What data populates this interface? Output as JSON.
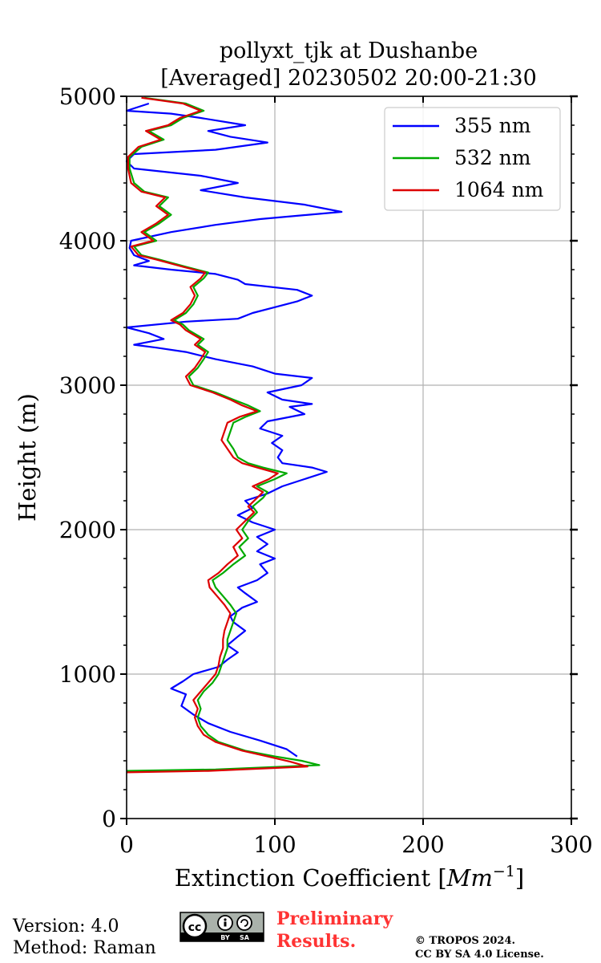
{
  "chart_data": {
    "type": "line",
    "title_line1": "pollyxt_tjk at Dushanbe",
    "title_line2": "[Averaged] 20230502 20:00-21:30",
    "xlabel": "Extinction Coefficient [Mm⁻¹]",
    "xlabel_main": "Extinction Coefficient [",
    "xlabel_unit": "Mm",
    "xlabel_exp": "−1",
    "xlabel_close": "]",
    "ylabel": "Height (m)",
    "xlim": [
      0,
      300
    ],
    "ylim": [
      0,
      5000
    ],
    "xticks": [
      0,
      100,
      200,
      300
    ],
    "yticks": [
      0,
      1000,
      2000,
      3000,
      4000,
      5000
    ],
    "xtick_labels": [
      "0",
      "100",
      "200",
      "300"
    ],
    "ytick_labels": [
      "0",
      "1000",
      "2000",
      "3000",
      "4000",
      "5000"
    ],
    "grid": true,
    "legend_position": "top-right",
    "series": [
      {
        "name": "355 nm",
        "color": "#0000ff",
        "points": [
          [
            115,
            430
          ],
          [
            108,
            480
          ],
          [
            90,
            540
          ],
          [
            70,
            600
          ],
          [
            55,
            660
          ],
          [
            45,
            720
          ],
          [
            37,
            780
          ],
          [
            40,
            860
          ],
          [
            30,
            900
          ],
          [
            38,
            950
          ],
          [
            45,
            1000
          ],
          [
            62,
            1050
          ],
          [
            68,
            1100
          ],
          [
            75,
            1150
          ],
          [
            68,
            1200
          ],
          [
            75,
            1260
          ],
          [
            80,
            1300
          ],
          [
            72,
            1360
          ],
          [
            70,
            1400
          ],
          [
            78,
            1460
          ],
          [
            88,
            1500
          ],
          [
            80,
            1560
          ],
          [
            75,
            1600
          ],
          [
            88,
            1650
          ],
          [
            95,
            1700
          ],
          [
            90,
            1760
          ],
          [
            100,
            1800
          ],
          [
            88,
            1850
          ],
          [
            95,
            1900
          ],
          [
            88,
            1950
          ],
          [
            100,
            2000
          ],
          [
            85,
            2050
          ],
          [
            75,
            2100
          ],
          [
            85,
            2150
          ],
          [
            80,
            2200
          ],
          [
            95,
            2250
          ],
          [
            105,
            2300
          ],
          [
            120,
            2350
          ],
          [
            135,
            2400
          ],
          [
            125,
            2430
          ],
          [
            105,
            2460
          ],
          [
            102,
            2500
          ],
          [
            105,
            2550
          ],
          [
            98,
            2600
          ],
          [
            105,
            2650
          ],
          [
            90,
            2700
          ],
          [
            95,
            2750
          ],
          [
            120,
            2800
          ],
          [
            110,
            2850
          ],
          [
            125,
            2870
          ],
          [
            105,
            2900
          ],
          [
            95,
            2950
          ],
          [
            118,
            3000
          ],
          [
            125,
            3050
          ],
          [
            100,
            3080
          ],
          [
            85,
            3130
          ],
          [
            60,
            3180
          ],
          [
            40,
            3230
          ],
          [
            20,
            3260
          ],
          [
            5,
            3280
          ],
          [
            25,
            3320
          ],
          [
            15,
            3360
          ],
          [
            0,
            3400
          ],
          [
            40,
            3440
          ],
          [
            75,
            3460
          ],
          [
            85,
            3500
          ],
          [
            100,
            3540
          ],
          [
            115,
            3580
          ],
          [
            125,
            3620
          ],
          [
            115,
            3660
          ],
          [
            80,
            3700
          ],
          [
            75,
            3730
          ],
          [
            60,
            3770
          ],
          [
            30,
            3800
          ],
          [
            5,
            3830
          ],
          [
            15,
            3860
          ],
          [
            5,
            3900
          ],
          [
            2,
            3950
          ],
          [
            3,
            4000
          ],
          [
            30,
            4060
          ],
          [
            60,
            4110
          ],
          [
            90,
            4150
          ],
          [
            145,
            4200
          ],
          [
            120,
            4250
          ],
          [
            80,
            4300
          ],
          [
            50,
            4350
          ],
          [
            75,
            4400
          ],
          [
            50,
            4450
          ],
          [
            5,
            4500
          ],
          [
            0,
            4550
          ],
          [
            5,
            4600
          ],
          [
            60,
            4630
          ],
          [
            95,
            4680
          ],
          [
            70,
            4720
          ],
          [
            55,
            4760
          ],
          [
            80,
            4800
          ],
          [
            50,
            4850
          ],
          [
            30,
            4880
          ],
          [
            0,
            4900
          ],
          [
            15,
            4950
          ]
        ]
      },
      {
        "name": "532 nm",
        "color": "#00aa00",
        "points": [
          [
            0,
            330
          ],
          [
            60,
            340
          ],
          [
            130,
            370
          ],
          [
            118,
            400
          ],
          [
            100,
            430
          ],
          [
            80,
            470
          ],
          [
            62,
            530
          ],
          [
            55,
            580
          ],
          [
            50,
            640
          ],
          [
            48,
            700
          ],
          [
            50,
            760
          ],
          [
            48,
            820
          ],
          [
            52,
            880
          ],
          [
            58,
            940
          ],
          [
            62,
            1000
          ],
          [
            64,
            1060
          ],
          [
            66,
            1120
          ],
          [
            68,
            1180
          ],
          [
            68,
            1240
          ],
          [
            70,
            1300
          ],
          [
            72,
            1360
          ],
          [
            74,
            1420
          ],
          [
            70,
            1480
          ],
          [
            65,
            1540
          ],
          [
            60,
            1600
          ],
          [
            58,
            1650
          ],
          [
            65,
            1700
          ],
          [
            72,
            1760
          ],
          [
            80,
            1820
          ],
          [
            76,
            1880
          ],
          [
            82,
            1940
          ],
          [
            78,
            2000
          ],
          [
            82,
            2060
          ],
          [
            88,
            2120
          ],
          [
            85,
            2160
          ],
          [
            92,
            2220
          ],
          [
            95,
            2260
          ],
          [
            88,
            2300
          ],
          [
            100,
            2350
          ],
          [
            108,
            2390
          ],
          [
            92,
            2430
          ],
          [
            82,
            2460
          ],
          [
            75,
            2500
          ],
          [
            72,
            2560
          ],
          [
            68,
            2620
          ],
          [
            70,
            2680
          ],
          [
            72,
            2740
          ],
          [
            80,
            2780
          ],
          [
            90,
            2820
          ],
          [
            82,
            2860
          ],
          [
            72,
            2900
          ],
          [
            60,
            2950
          ],
          [
            45,
            3000
          ],
          [
            42,
            3060
          ],
          [
            48,
            3120
          ],
          [
            52,
            3180
          ],
          [
            55,
            3230
          ],
          [
            48,
            3280
          ],
          [
            52,
            3320
          ],
          [
            42,
            3380
          ],
          [
            38,
            3420
          ],
          [
            32,
            3450
          ],
          [
            40,
            3500
          ],
          [
            45,
            3560
          ],
          [
            48,
            3620
          ],
          [
            45,
            3680
          ],
          [
            52,
            3740
          ],
          [
            55,
            3780
          ],
          [
            40,
            3820
          ],
          [
            22,
            3870
          ],
          [
            10,
            3900
          ],
          [
            5,
            3960
          ],
          [
            20,
            4000
          ],
          [
            12,
            4060
          ],
          [
            22,
            4120
          ],
          [
            30,
            4180
          ],
          [
            22,
            4240
          ],
          [
            28,
            4300
          ],
          [
            12,
            4340
          ],
          [
            5,
            4400
          ],
          [
            2,
            4500
          ],
          [
            2,
            4580
          ],
          [
            10,
            4650
          ],
          [
            25,
            4700
          ],
          [
            15,
            4760
          ],
          [
            30,
            4800
          ],
          [
            38,
            4850
          ],
          [
            52,
            4900
          ],
          [
            40,
            4950
          ],
          [
            12,
            4990
          ]
        ]
      },
      {
        "name": "1064 nm",
        "color": "#dd0000",
        "points": [
          [
            0,
            320
          ],
          [
            55,
            330
          ],
          [
            122,
            360
          ],
          [
            110,
            395
          ],
          [
            95,
            430
          ],
          [
            78,
            470
          ],
          [
            60,
            530
          ],
          [
            52,
            580
          ],
          [
            48,
            640
          ],
          [
            46,
            700
          ],
          [
            48,
            760
          ],
          [
            45,
            820
          ],
          [
            50,
            880
          ],
          [
            55,
            940
          ],
          [
            60,
            1000
          ],
          [
            62,
            1060
          ],
          [
            63,
            1120
          ],
          [
            65,
            1180
          ],
          [
            65,
            1240
          ],
          [
            66,
            1300
          ],
          [
            68,
            1360
          ],
          [
            70,
            1420
          ],
          [
            66,
            1480
          ],
          [
            61,
            1540
          ],
          [
            56,
            1600
          ],
          [
            55,
            1650
          ],
          [
            62,
            1700
          ],
          [
            68,
            1760
          ],
          [
            75,
            1820
          ],
          [
            72,
            1880
          ],
          [
            78,
            1940
          ],
          [
            74,
            2000
          ],
          [
            80,
            2060
          ],
          [
            86,
            2120
          ],
          [
            82,
            2160
          ],
          [
            88,
            2220
          ],
          [
            92,
            2260
          ],
          [
            85,
            2300
          ],
          [
            96,
            2350
          ],
          [
            102,
            2390
          ],
          [
            88,
            2430
          ],
          [
            78,
            2460
          ],
          [
            72,
            2500
          ],
          [
            68,
            2560
          ],
          [
            64,
            2620
          ],
          [
            66,
            2680
          ],
          [
            68,
            2740
          ],
          [
            76,
            2780
          ],
          [
            88,
            2820
          ],
          [
            78,
            2860
          ],
          [
            70,
            2900
          ],
          [
            58,
            2950
          ],
          [
            43,
            3000
          ],
          [
            40,
            3060
          ],
          [
            46,
            3120
          ],
          [
            50,
            3180
          ],
          [
            53,
            3230
          ],
          [
            46,
            3280
          ],
          [
            50,
            3320
          ],
          [
            40,
            3380
          ],
          [
            36,
            3420
          ],
          [
            30,
            3450
          ],
          [
            38,
            3500
          ],
          [
            43,
            3560
          ],
          [
            46,
            3620
          ],
          [
            43,
            3680
          ],
          [
            50,
            3740
          ],
          [
            53,
            3780
          ],
          [
            38,
            3820
          ],
          [
            20,
            3870
          ],
          [
            8,
            3900
          ],
          [
            3,
            3960
          ],
          [
            18,
            4000
          ],
          [
            10,
            4060
          ],
          [
            20,
            4120
          ],
          [
            28,
            4180
          ],
          [
            20,
            4240
          ],
          [
            26,
            4300
          ],
          [
            10,
            4340
          ],
          [
            3,
            4400
          ],
          [
            1,
            4500
          ],
          [
            1,
            4580
          ],
          [
            8,
            4650
          ],
          [
            23,
            4700
          ],
          [
            13,
            4760
          ],
          [
            28,
            4800
          ],
          [
            36,
            4850
          ],
          [
            50,
            4900
          ],
          [
            38,
            4950
          ],
          [
            10,
            4990
          ]
        ]
      }
    ]
  },
  "footer": {
    "version": "Version: 4.0",
    "method": "Method: Raman",
    "prelim_line1": "Preliminary",
    "prelim_line2": "Results.",
    "copyright_line1": "© TROPOS 2024.",
    "copyright_line2": "CC BY SA 4.0 License.",
    "cc_badge": {
      "cc": "cc",
      "by": "BY",
      "sa": "SA"
    }
  }
}
